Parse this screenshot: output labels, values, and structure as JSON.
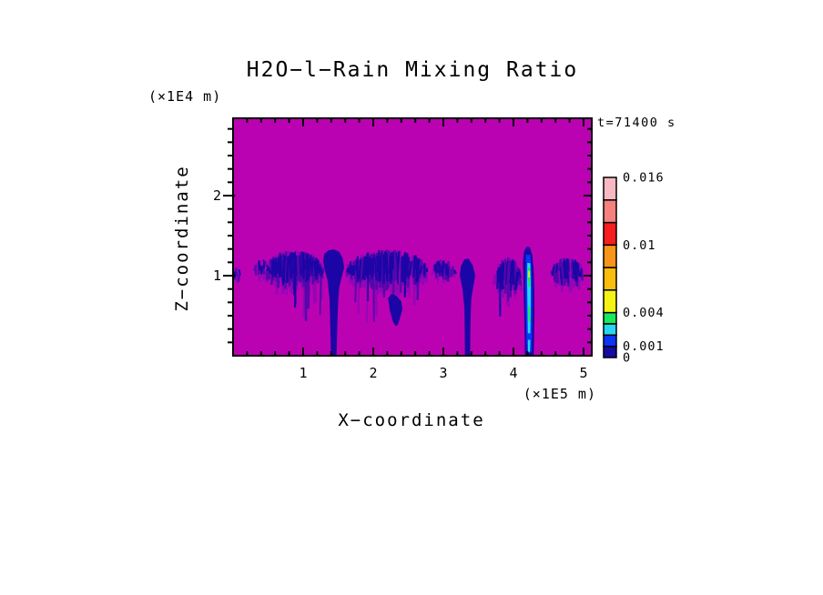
{
  "page": {
    "background": "#ffffff"
  },
  "chart_data": {
    "type": "heatmap",
    "title": "H2O−l−Rain Mixing Ratio",
    "time_label": "t=71400 s",
    "axes": {
      "x": {
        "label": "X−coordinate",
        "units_label": "(×1E5 m)",
        "units": "1E5 m",
        "range": [
          0,
          5.12
        ],
        "major_ticks": [
          1,
          2,
          3,
          4,
          5
        ],
        "minor_tick_step": 0.2
      },
      "z": {
        "label": "Z−coordinate",
        "units_label": "(×1E4 m)",
        "units": "1E4 m",
        "range": [
          0,
          2.97
        ],
        "major_ticks": [
          1,
          2
        ],
        "minor_ticks_per_unit": 6
      }
    },
    "colorbar": {
      "levels": [
        0,
        0.001,
        0.002,
        0.003,
        0.004,
        0.006,
        0.008,
        0.01,
        0.012,
        0.014,
        0.016
      ],
      "colors": [
        "#140aa4",
        "#0b35f7",
        "#27d7f2",
        "#1ae95b",
        "#f4f414",
        "#fbbd0b",
        "#f9941a",
        "#f71e20",
        "#f4817e",
        "#f9b9c3"
      ],
      "tick_labels": [
        {
          "value": 0.016,
          "text": "0.016"
        },
        {
          "value": 0.01,
          "text": "0.01"
        },
        {
          "value": 0.004,
          "text": "0.004"
        },
        {
          "value": 0.001,
          "text": "0.001"
        },
        {
          "value": 0,
          "text": "0"
        }
      ]
    },
    "palette": {
      "background": "#bb02b2",
      "fringe": "#9306b6",
      "mid": "#5407ac",
      "core": "#1c05a6",
      "blue": "#0b35f7",
      "cyan": "#27d7f2",
      "green": "#1ae95b",
      "yellow": "#f4f414"
    },
    "field_background_value": 0,
    "coords_note": "feature coordinates: x in 1E5 m, z in 1E4 m; mixing-ratio field is 0 (magenta) everywhere except rain features near z=1",
    "features": {
      "clusters": [
        {
          "name": "edge-speck",
          "x0": 0.01,
          "x1": 0.1,
          "z_top": 1.06,
          "z_bot": 0.9,
          "density": 0.5,
          "seed": 11,
          "streamers": false
        },
        {
          "name": "cluster-a-lead",
          "x0": 0.3,
          "x1": 0.5,
          "z_top": 1.16,
          "z_bot": 0.95,
          "density": 0.45,
          "seed": 21,
          "streamers": false
        },
        {
          "name": "cluster-a",
          "x0": 0.47,
          "x1": 1.28,
          "z_top": 1.27,
          "z_bot": 0.74,
          "density": 1.0,
          "seed": 31,
          "streamers": true
        },
        {
          "name": "cluster-b",
          "x0": 1.63,
          "x1": 2.78,
          "z_top": 1.28,
          "z_bot": 0.72,
          "density": 1.0,
          "seed": 41,
          "streamers": true
        },
        {
          "name": "cluster-c",
          "x0": 2.84,
          "x1": 3.17,
          "z_top": 1.16,
          "z_bot": 0.9,
          "density": 0.62,
          "seed": 51,
          "streamers": false
        },
        {
          "name": "cluster-e",
          "x0": 3.73,
          "x1": 4.1,
          "z_top": 1.18,
          "z_bot": 0.62,
          "density": 0.8,
          "seed": 61,
          "streamers": true
        },
        {
          "name": "cluster-g",
          "x0": 4.55,
          "x1": 4.99,
          "z_top": 1.18,
          "z_bot": 0.8,
          "density": 0.85,
          "seed": 71,
          "streamers": false
        }
      ],
      "plumes": [
        {
          "name": "funnel-plume",
          "color": "core",
          "points": [
            [
              1.286,
              1.18
            ],
            [
              1.3,
              1.27
            ],
            [
              1.36,
              1.315
            ],
            [
              1.44,
              1.33
            ],
            [
              1.52,
              1.295
            ],
            [
              1.568,
              1.21
            ],
            [
              1.584,
              1.1
            ],
            [
              1.55,
              0.98
            ],
            [
              1.515,
              0.86
            ],
            [
              1.5,
              0.68
            ],
            [
              1.49,
              0.45
            ],
            [
              1.475,
              0.0
            ],
            [
              1.398,
              0.0
            ],
            [
              1.385,
              0.45
            ],
            [
              1.375,
              0.72
            ],
            [
              1.345,
              0.95
            ],
            [
              1.3,
              1.1
            ]
          ]
        },
        {
          "name": "cluster-b-tail",
          "color": "core",
          "points": [
            [
              2.21,
              0.72
            ],
            [
              2.26,
              0.77
            ],
            [
              2.33,
              0.75
            ],
            [
              2.4,
              0.68
            ],
            [
              2.415,
              0.58
            ],
            [
              2.38,
              0.47
            ],
            [
              2.35,
              0.385
            ],
            [
              2.315,
              0.37
            ],
            [
              2.28,
              0.43
            ],
            [
              2.24,
              0.55
            ]
          ]
        },
        {
          "name": "stem-plume",
          "color": "core",
          "points": [
            [
              3.234,
              1.0
            ],
            [
              3.25,
              1.12
            ],
            [
              3.3,
              1.205
            ],
            [
              3.36,
              1.215
            ],
            [
              3.42,
              1.13
            ],
            [
              3.455,
              1.0
            ],
            [
              3.43,
              0.875
            ],
            [
              3.4,
              0.72
            ],
            [
              3.39,
              0.5
            ],
            [
              3.385,
              0.25
            ],
            [
              3.382,
              0.0
            ],
            [
              3.308,
              0.0
            ],
            [
              3.305,
              0.3
            ],
            [
              3.3,
              0.6
            ],
            [
              3.27,
              0.85
            ]
          ]
        },
        {
          "name": "bright-streak-outer",
          "color": "core",
          "points": [
            [
              4.135,
              1.18
            ],
            [
              4.15,
              1.3
            ],
            [
              4.185,
              1.36
            ],
            [
              4.235,
              1.355
            ],
            [
              4.268,
              1.26
            ],
            [
              4.288,
              1.08
            ],
            [
              4.298,
              0.85
            ],
            [
              4.3,
              0.55
            ],
            [
              4.295,
              0.25
            ],
            [
              4.29,
              0.0
            ],
            [
              4.163,
              0.0
            ],
            [
              4.158,
              0.3
            ],
            [
              4.15,
              0.65
            ],
            [
              4.142,
              0.95
            ]
          ]
        },
        {
          "name": "bright-streak-blue",
          "color": "blue",
          "points": [
            [
              4.178,
              1.26
            ],
            [
              4.24,
              1.26
            ],
            [
              4.262,
              1.0
            ],
            [
              4.268,
              0.7
            ],
            [
              4.265,
              0.35
            ],
            [
              4.26,
              0.05
            ],
            [
              4.19,
              0.05
            ],
            [
              4.18,
              0.4
            ],
            [
              4.172,
              0.8
            ]
          ]
        },
        {
          "name": "bright-streak-cyan-core",
          "color": "cyan",
          "points": [
            [
              4.198,
              1.16
            ],
            [
              4.24,
              1.155
            ],
            [
              4.247,
              0.85
            ],
            [
              4.245,
              0.55
            ],
            [
              4.24,
              0.28
            ],
            [
              4.205,
              0.28
            ],
            [
              4.2,
              0.6
            ],
            [
              4.195,
              0.9
            ]
          ]
        },
        {
          "name": "bright-streak-green-upper",
          "color": "green",
          "points": [
            [
              4.205,
              1.1
            ],
            [
              4.238,
              1.095
            ],
            [
              4.24,
              0.86
            ],
            [
              4.207,
              0.865
            ]
          ]
        },
        {
          "name": "bright-streak-green-lower",
          "color": "green",
          "points": [
            [
              4.21,
              0.62
            ],
            [
              4.24,
              0.615
            ],
            [
              4.238,
              0.42
            ],
            [
              4.212,
              0.425
            ]
          ]
        },
        {
          "name": "bright-streak-yellow-speck",
          "color": "yellow",
          "points": [
            [
              4.212,
              1.06
            ],
            [
              4.232,
              1.058
            ],
            [
              4.233,
              0.975
            ],
            [
              4.213,
              0.978
            ]
          ]
        },
        {
          "name": "bright-streak-cyan-bottom",
          "color": "cyan",
          "points": [
            [
              4.205,
              0.2
            ],
            [
              4.24,
              0.195
            ],
            [
              4.235,
              0.04
            ],
            [
              4.208,
              0.045
            ]
          ]
        }
      ]
    }
  }
}
